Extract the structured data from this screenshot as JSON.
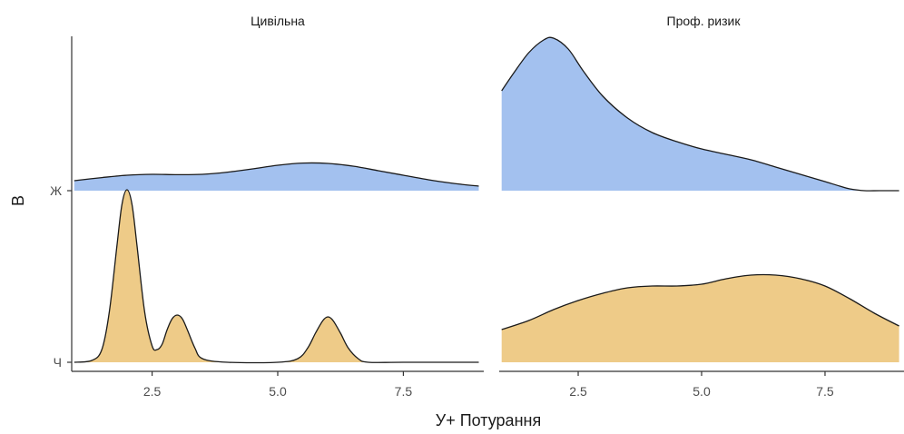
{
  "chart_data": {
    "type": "area",
    "subtype": "ridgeline-density",
    "xlabel": "У+ Потурання",
    "ylabel": "В",
    "xlim": [
      0.9,
      9.1
    ],
    "x_ticks": [
      "2.5",
      "5.0",
      "7.5"
    ],
    "y_categories": [
      "Ч",
      "Ж"
    ],
    "colors": {
      "Ж": "#a3c1ef",
      "Ч": "#eecb88"
    },
    "panels": [
      {
        "title": "Цивільна",
        "series": [
          {
            "name": "Ж",
            "x": [
              0.95,
              1.5,
              2.0,
              2.5,
              3.0,
              3.5,
              4.0,
              4.5,
              5.0,
              5.5,
              6.0,
              6.5,
              7.0,
              7.5,
              8.0,
              8.5,
              9.0
            ],
            "y": [
              0.055,
              0.072,
              0.085,
              0.09,
              0.088,
              0.09,
              0.102,
              0.12,
              0.14,
              0.152,
              0.15,
              0.135,
              0.11,
              0.085,
              0.06,
              0.04,
              0.025
            ]
          },
          {
            "name": "Ч",
            "x": [
              0.95,
              1.3,
              1.5,
              1.65,
              1.8,
              1.9,
              2.0,
              2.1,
              2.2,
              2.35,
              2.5,
              2.6,
              2.7,
              2.8,
              2.9,
              3.0,
              3.1,
              3.2,
              3.35,
              3.5,
              4.0,
              5.0,
              5.4,
              5.6,
              5.75,
              5.9,
              6.0,
              6.1,
              6.25,
              6.4,
              6.6,
              6.8,
              7.5,
              9.0
            ],
            "y": [
              0.0,
              0.01,
              0.07,
              0.28,
              0.64,
              0.87,
              0.95,
              0.87,
              0.64,
              0.28,
              0.09,
              0.07,
              0.1,
              0.18,
              0.24,
              0.26,
              0.24,
              0.18,
              0.08,
              0.02,
              0.0,
              0.0,
              0.02,
              0.08,
              0.16,
              0.23,
              0.25,
              0.23,
              0.16,
              0.08,
              0.02,
              0.0,
              0.0,
              0.0
            ]
          }
        ]
      },
      {
        "title": "Проф. ризик",
        "series": [
          {
            "name": "Ж",
            "x": [
              0.95,
              1.2,
              1.5,
              1.8,
              2.0,
              2.3,
              2.6,
              3.0,
              3.5,
              4.0,
              4.5,
              5.0,
              5.5,
              6.0,
              6.5,
              7.0,
              7.5,
              7.8,
              8.0,
              8.3,
              8.6,
              9.0
            ],
            "y": [
              0.55,
              0.65,
              0.76,
              0.83,
              0.84,
              0.78,
              0.66,
              0.52,
              0.4,
              0.32,
              0.27,
              0.23,
              0.2,
              0.17,
              0.13,
              0.09,
              0.05,
              0.025,
              0.01,
              0.0,
              0.0,
              0.0
            ]
          },
          {
            "name": "Ч",
            "x": [
              0.95,
              1.5,
              2.0,
              2.5,
              3.0,
              3.5,
              4.0,
              4.5,
              5.0,
              5.5,
              6.0,
              6.5,
              7.0,
              7.5,
              8.0,
              8.5,
              9.0
            ],
            "y": [
              0.18,
              0.23,
              0.29,
              0.34,
              0.38,
              0.41,
              0.42,
              0.42,
              0.43,
              0.46,
              0.48,
              0.48,
              0.46,
              0.42,
              0.35,
              0.27,
              0.2
            ]
          }
        ]
      }
    ]
  }
}
